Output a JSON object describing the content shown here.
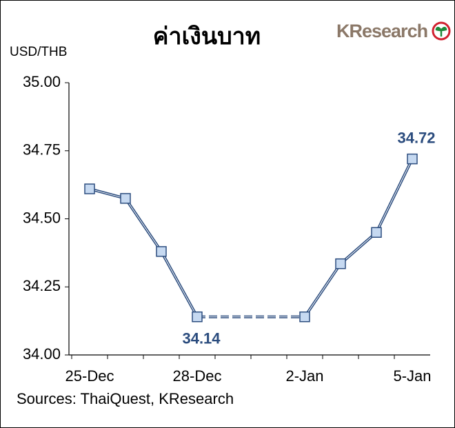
{
  "chart_data": {
    "type": "line",
    "title": "ค่าเงินบาท",
    "y_label": "USD/THB",
    "source": "Sources: ThaiQuest, KResearch",
    "logo": "KResearch",
    "categories": [
      "25-Dec",
      null,
      null,
      "28-Dec",
      null,
      null,
      "2-Jan",
      null,
      null,
      "5-Jan"
    ],
    "series": [
      {
        "color": "#2b4c7e",
        "marker_color": "#c6d9f1",
        "values": [
          34.61,
          34.575,
          34.38,
          34.14,
          null,
          null,
          34.14,
          34.335,
          34.45,
          34.72
        ],
        "value_labels": [
          null,
          null,
          null,
          "34.14",
          null,
          null,
          null,
          null,
          null,
          "34.72"
        ]
      }
    ],
    "ylim": [
      34.0,
      35.0
    ],
    "yticks": [
      {
        "value": 34.0,
        "label": "34.00"
      },
      {
        "value": 34.25,
        "label": "34.25"
      },
      {
        "value": 34.5,
        "label": "34.50"
      },
      {
        "value": 34.75,
        "label": "34.75"
      },
      {
        "value": 35.0,
        "label": "35.00"
      }
    ],
    "grid": false
  }
}
